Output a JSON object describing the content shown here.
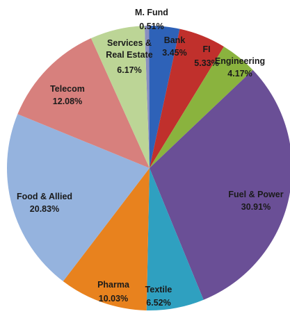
{
  "chart_data": {
    "type": "pie",
    "slices": [
      {
        "label": "M. Fund",
        "value": 0.51,
        "value_text": "0.51%",
        "color": "#8a8fc0"
      },
      {
        "label": "Bank",
        "value": 3.45,
        "value_text": "3.45%",
        "color": "#2e62b8"
      },
      {
        "label": "FI",
        "value": 5.33,
        "value_text": "5.33%",
        "color": "#c0302c"
      },
      {
        "label": "Engineering",
        "value": 4.17,
        "value_text": "4.17%",
        "color": "#8ab33e"
      },
      {
        "label": "Fuel & Power",
        "value": 30.91,
        "value_text": "30.91%",
        "color": "#6a4f96"
      },
      {
        "label": "Textile",
        "value": 6.52,
        "value_text": "6.52%",
        "color": "#2fa0c0"
      },
      {
        "label": "Pharma",
        "value": 10.03,
        "value_text": "10.03%",
        "color": "#e8821e"
      },
      {
        "label": "Food & Allied",
        "value": 20.83,
        "value_text": "20.83%",
        "color": "#95b3de"
      },
      {
        "label": "Telecom",
        "value": 12.08,
        "value_text": "12.08%",
        "color": "#d7807d"
      },
      {
        "label": "Services & Real Estate",
        "value": 6.17,
        "value_text": "6.17%",
        "color": "#bcd596"
      }
    ]
  }
}
